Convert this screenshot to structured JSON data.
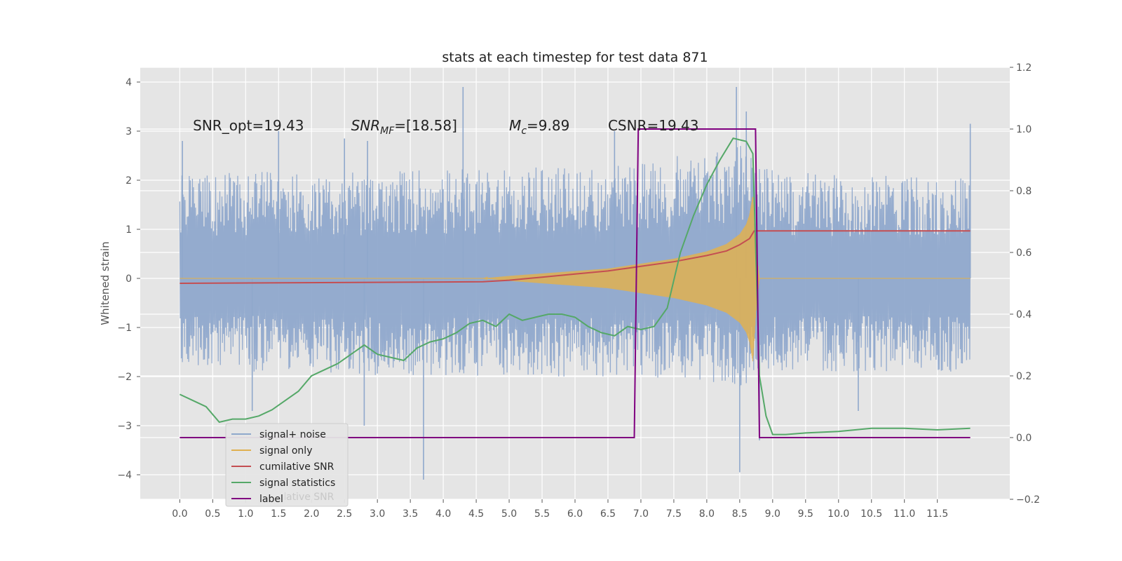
{
  "chart_data": {
    "type": "line",
    "title": "stats at each timestep for test data 871",
    "ylabel": "Whitened strain",
    "xlim": [
      -0.6,
      12.6
    ],
    "ylim": [
      -4.5,
      4.3
    ],
    "y2lim": [
      -0.2,
      1.2
    ],
    "grid": true,
    "legend_position": "lower-left",
    "x_ticks": [
      "0.0",
      "0.5",
      "1.0",
      "1.5",
      "2.0",
      "2.5",
      "3.0",
      "3.5",
      "4.0",
      "4.5",
      "5.0",
      "5.5",
      "6.0",
      "6.5",
      "7.0",
      "7.5",
      "8.0",
      "8.5",
      "9.0",
      "9.5",
      "10.0",
      "10.5",
      "11.0",
      "11.5"
    ],
    "y_ticks": [
      "4",
      "3",
      "2",
      "1",
      "0",
      "−1",
      "−2",
      "−3",
      "−4"
    ],
    "y2_ticks": [
      "1.2",
      "1.0",
      "0.8",
      "0.6",
      "0.4",
      "0.2",
      "0.0",
      "−0.2"
    ],
    "annotations": [
      {
        "text": "SNR_opt=19.43",
        "x": 0.2,
        "y": 3.1
      },
      {
        "text": "SNR_MF=[18.58]",
        "x": 2.6,
        "y": 3.1
      },
      {
        "text": "M_c=9.89",
        "x": 5.0,
        "y": 3.1
      },
      {
        "text": "CSNR=19.43",
        "x": 6.5,
        "y": 3.1
      }
    ],
    "noise_envelope": {
      "x": [
        0.0,
        1.0,
        2.0,
        3.0,
        4.0,
        5.0,
        6.0,
        7.0,
        8.0,
        8.5,
        8.7,
        9.0,
        10.0,
        11.0,
        12.0
      ],
      "upper": [
        2.1,
        2.2,
        2.1,
        2.2,
        2.2,
        2.3,
        2.3,
        2.4,
        2.6,
        2.8,
        2.7,
        2.2,
        2.1,
        2.1,
        2.1
      ],
      "lower": [
        -1.8,
        -1.9,
        -1.9,
        -2.0,
        -2.0,
        -2.0,
        -2.0,
        -2.0,
        -2.1,
        -2.2,
        -2.1,
        -1.9,
        -1.9,
        -1.9,
        -1.9
      ]
    },
    "noise_spikes": [
      {
        "x": 0.04,
        "y": 2.8
      },
      {
        "x": 1.5,
        "y": 3.0
      },
      {
        "x": 2.5,
        "y": 2.85
      },
      {
        "x": 2.85,
        "y": 2.8
      },
      {
        "x": 4.3,
        "y": 3.9
      },
      {
        "x": 6.6,
        "y": 3.0
      },
      {
        "x": 8.45,
        "y": 3.9
      },
      {
        "x": 8.6,
        "y": 3.4
      },
      {
        "x": 12.0,
        "y": 3.15
      },
      {
        "x": 3.7,
        "y": -4.1
      },
      {
        "x": 2.8,
        "y": -3.0
      },
      {
        "x": 8.5,
        "y": -3.95
      },
      {
        "x": 8.8,
        "y": -3.3
      },
      {
        "x": 1.1,
        "y": -2.7
      },
      {
        "x": 10.3,
        "y": -2.7
      }
    ],
    "series": [
      {
        "name": "signal+ noise",
        "color": "#8fa8cc",
        "axis": "left"
      },
      {
        "name": "signal only",
        "color": "#e0b050",
        "axis": "left",
        "x": [
          4.6,
          5.0,
          5.5,
          6.0,
          6.5,
          7.0,
          7.5,
          8.0,
          8.3,
          8.5,
          8.6,
          8.65,
          8.7,
          8.75,
          8.8
        ],
        "amplitude": [
          0.0,
          0.05,
          0.1,
          0.15,
          0.2,
          0.3,
          0.4,
          0.55,
          0.7,
          0.9,
          1.1,
          1.3,
          1.7,
          0.6,
          0.0
        ]
      },
      {
        "name": "cumilative SNR",
        "color": "#c44e52",
        "axis": "right",
        "x": [
          0.0,
          4.6,
          5.0,
          5.5,
          6.0,
          6.5,
          7.0,
          7.5,
          8.0,
          8.3,
          8.5,
          8.65,
          8.72,
          8.75,
          12.0
        ],
        "values": [
          0.5,
          0.505,
          0.51,
          0.52,
          0.53,
          0.54,
          0.555,
          0.57,
          0.59,
          0.605,
          0.625,
          0.645,
          0.67,
          0.67,
          0.67
        ]
      },
      {
        "name": "signal statistics",
        "color": "#55a868",
        "axis": "right",
        "x": [
          0.0,
          0.2,
          0.4,
          0.6,
          0.8,
          1.0,
          1.2,
          1.4,
          1.6,
          1.8,
          2.0,
          2.2,
          2.4,
          2.6,
          2.8,
          3.0,
          3.2,
          3.4,
          3.6,
          3.8,
          4.0,
          4.2,
          4.4,
          4.6,
          4.8,
          5.0,
          5.2,
          5.4,
          5.6,
          5.8,
          6.0,
          6.2,
          6.4,
          6.6,
          6.8,
          7.0,
          7.2,
          7.4,
          7.6,
          7.8,
          8.0,
          8.2,
          8.4,
          8.6,
          8.7,
          8.8,
          8.9,
          9.0,
          9.2,
          9.5,
          10.0,
          10.5,
          11.0,
          11.5,
          12.0
        ],
        "values": [
          0.14,
          0.12,
          0.1,
          0.05,
          0.06,
          0.06,
          0.07,
          0.09,
          0.12,
          0.15,
          0.2,
          0.22,
          0.24,
          0.27,
          0.3,
          0.27,
          0.26,
          0.25,
          0.29,
          0.31,
          0.32,
          0.34,
          0.37,
          0.38,
          0.36,
          0.4,
          0.38,
          0.39,
          0.4,
          0.4,
          0.39,
          0.36,
          0.34,
          0.33,
          0.36,
          0.35,
          0.36,
          0.42,
          0.6,
          0.72,
          0.82,
          0.9,
          0.97,
          0.96,
          0.92,
          0.2,
          0.07,
          0.01,
          0.01,
          0.015,
          0.02,
          0.03,
          0.03,
          0.025,
          0.03
        ]
      },
      {
        "name": "label",
        "color": "#800080",
        "axis": "right",
        "x": [
          0.0,
          6.9,
          6.96,
          8.74,
          8.8,
          12.0
        ],
        "values": [
          0.0,
          0.0,
          1.0,
          1.0,
          0.0,
          0.0
        ]
      }
    ],
    "legend_entries": [
      "signal+ noise",
      "signal only",
      "cumilative SNR",
      "signal statistics",
      "label"
    ],
    "legend_ghost_text": "cumilative SNR"
  }
}
